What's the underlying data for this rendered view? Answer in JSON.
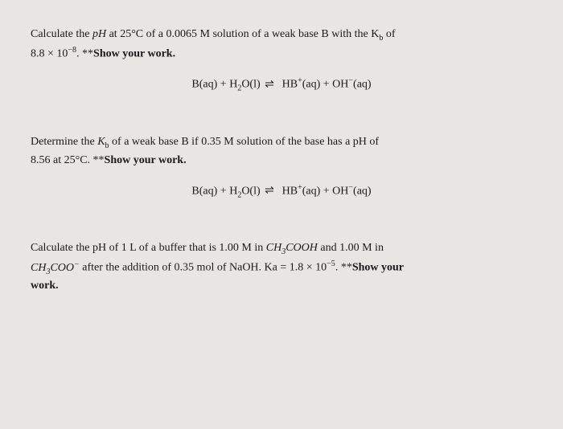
{
  "problems": [
    {
      "line1_pre": "Calculate the ",
      "line1_ph": "pH",
      "line1_mid": " at 25°C of a 0.0065 M solution of a weak base B with the K",
      "line1_sub": "b",
      "line1_post": " of",
      "line2_pre": "8.8 × 10",
      "line2_sup": "−8",
      "line2_post": ". **",
      "line2_bold": "Show your work.",
      "equation": {
        "lhs": "B(aq) + H",
        "h2o_sub": "2",
        "h2o_post": "O(l) ",
        "rhs_pre": " HB",
        "rhs_sup1": "+",
        "rhs_mid": "(aq) + OH",
        "rhs_sup2": "−",
        "rhs_post": "(aq)"
      }
    },
    {
      "line1_pre": "Determine the ",
      "line1_k": "K",
      "line1_sub": "b",
      "line1_post": " of a weak base B if 0.35 M solution of the base has a pH of",
      "line2_pre": "8.56 at 25°C. **",
      "line2_bold": "Show your work.",
      "equation": {
        "lhs": "B(aq) + H",
        "h2o_sub": "2",
        "h2o_post": "O(l) ",
        "rhs_pre": " HB",
        "rhs_sup1": "+",
        "rhs_mid": "(aq) + OH",
        "rhs_sup2": "−",
        "rhs_post": "(aq)"
      }
    },
    {
      "line1_pre": "Calculate the pH of 1 L of a buffer that is 1.00 M in ",
      "line1_formula1_pre": "CH",
      "line1_formula1_sub": "3",
      "line1_formula1_post": "COOH",
      "line1_post": "  and 1.00 M in",
      "line2_formula_pre": "CH",
      "line2_formula_sub": "3",
      "line2_formula_mid": "COO",
      "line2_formula_sup": "−",
      "line2_mid": " after the addition of 0.35 mol of NaOH. Ka = 1.8 × 10",
      "line2_sup": "−5",
      "line2_post": ". **",
      "line2_bold": "Show your",
      "line3_bold": "work."
    }
  ]
}
